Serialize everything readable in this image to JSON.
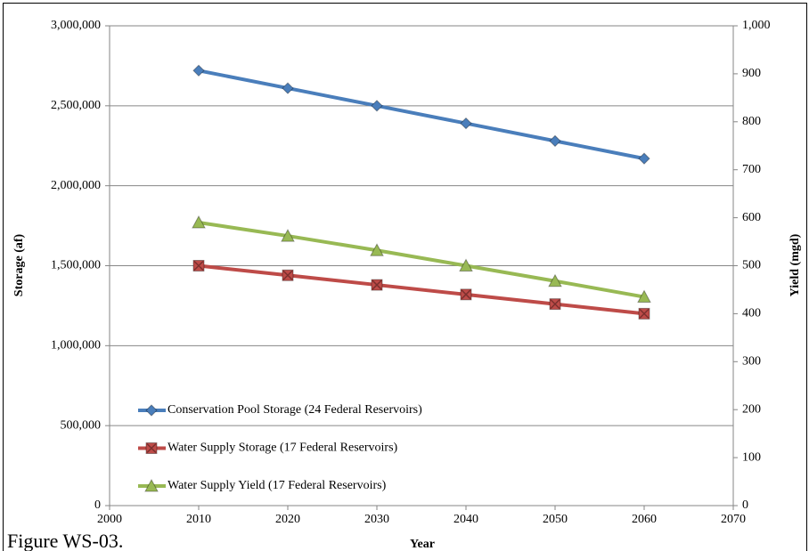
{
  "chart_data": {
    "type": "line",
    "caption": "Figure WS-03.",
    "xlabel": "Year",
    "ylabel": "Storage (af)",
    "y2label": "Yield (mgd)",
    "x": [
      2010,
      2020,
      2030,
      2040,
      2050,
      2060
    ],
    "xlim": [
      2000,
      2070
    ],
    "xticks": [
      2000,
      2010,
      2020,
      2030,
      2040,
      2050,
      2060,
      2070
    ],
    "ylim": [
      0,
      3000000
    ],
    "yticks": [
      0,
      {
        "value": 500000,
        "label": "500,000"
      },
      {
        "value": 1000000,
        "label": "1,000,000"
      },
      {
        "value": 1500000,
        "label": "1,500,000"
      },
      {
        "value": 2000000,
        "label": "2,000,000"
      },
      {
        "value": 2500000,
        "label": "2,500,000"
      },
      {
        "value": 3000000,
        "label": "3,000,000"
      }
    ],
    "y2lim": [
      0,
      1000
    ],
    "y2ticks": [
      0,
      100,
      200,
      300,
      400,
      500,
      600,
      700,
      800,
      900,
      {
        "value": 1000,
        "label": "1,000"
      }
    ],
    "grid": true,
    "legend": "lower left",
    "series": [
      {
        "name": "Conservation Pool Storage (24 Federal Reservoirs)",
        "color": "#4a7ebb",
        "marker": "diamond",
        "values": [
          2720000,
          2610000,
          2500000,
          2390000,
          2280000,
          2170000
        ]
      },
      {
        "name": "Water Supply Storage (17 Federal Reservoirs)",
        "color": "#be4b48",
        "marker": "square",
        "values": [
          1500000,
          1440000,
          1380000,
          1320000,
          1260000,
          1200000
        ]
      },
      {
        "name": "Water Supply Yield (17 Federal Reservoirs)",
        "color": "#98b954",
        "marker": "triangle",
        "axis": "y2",
        "values": [
          590,
          562,
          532,
          500,
          468,
          435
        ]
      }
    ]
  }
}
